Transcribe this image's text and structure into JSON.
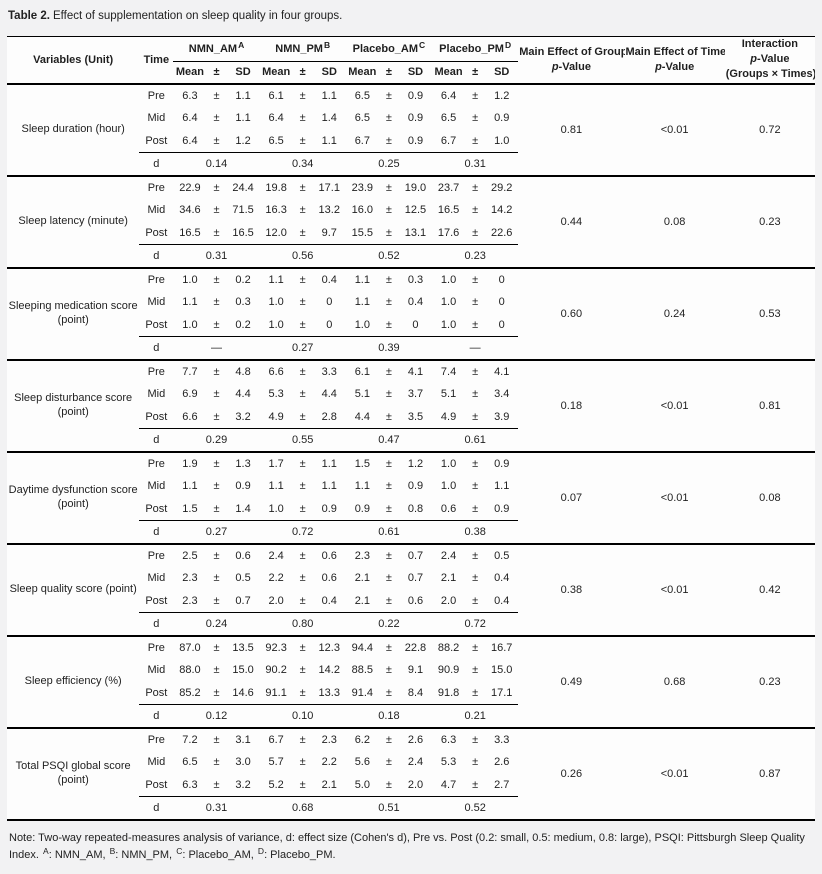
{
  "title": {
    "label": "Table 2.",
    "caption": "Effect of supplementation on sleep quality in four groups."
  },
  "header": {
    "variables": "Variables (Unit)",
    "time": "Time",
    "groups": [
      {
        "name": "NMN_AM",
        "sup": "A"
      },
      {
        "name": "NMN_PM",
        "sup": "B"
      },
      {
        "name": "Placebo_AM",
        "sup": "C"
      },
      {
        "name": "Placebo_PM",
        "sup": "D"
      }
    ],
    "stat_cols": [
      "Mean",
      "±",
      "SD"
    ],
    "p_value_italic": "p",
    "p_value_rest": "-Value",
    "p_cols": [
      {
        "line1": "Main Effect of Group"
      },
      {
        "line1": "Main Effect of Time"
      },
      {
        "line1": "Interaction",
        "line3": "(Groups × Times)"
      }
    ]
  },
  "plus_minus": "±",
  "d_label": "d",
  "rows": [
    {
      "variable": "Sleep duration (hour)",
      "times": [
        {
          "label": "Pre",
          "cells": [
            [
              "6.3",
              "1.1"
            ],
            [
              "6.1",
              "1.1"
            ],
            [
              "6.5",
              "0.9"
            ],
            [
              "6.4",
              "1.2"
            ]
          ]
        },
        {
          "label": "Mid",
          "cells": [
            [
              "6.4",
              "1.1"
            ],
            [
              "6.4",
              "1.4"
            ],
            [
              "6.5",
              "0.9"
            ],
            [
              "6.5",
              "0.9"
            ]
          ]
        },
        {
          "label": "Post",
          "cells": [
            [
              "6.4",
              "1.2"
            ],
            [
              "6.5",
              "1.1"
            ],
            [
              "6.7",
              "0.9"
            ],
            [
              "6.7",
              "1.0"
            ]
          ]
        }
      ],
      "d": [
        "0.14",
        "0.34",
        "0.25",
        "0.31"
      ],
      "p_group": "0.81",
      "p_time": "<0.01",
      "p_interaction": "0.72"
    },
    {
      "variable": "Sleep latency (minute)",
      "times": [
        {
          "label": "Pre",
          "cells": [
            [
              "22.9",
              "24.4"
            ],
            [
              "19.8",
              "17.1"
            ],
            [
              "23.9",
              "19.0"
            ],
            [
              "23.7",
              "29.2"
            ]
          ]
        },
        {
          "label": "Mid",
          "cells": [
            [
              "34.6",
              "71.5"
            ],
            [
              "16.3",
              "13.2"
            ],
            [
              "16.0",
              "12.5"
            ],
            [
              "16.5",
              "14.2"
            ]
          ]
        },
        {
          "label": "Post",
          "cells": [
            [
              "16.5",
              "16.5"
            ],
            [
              "12.0",
              "9.7"
            ],
            [
              "15.5",
              "13.1"
            ],
            [
              "17.6",
              "22.6"
            ]
          ]
        }
      ],
      "d": [
        "0.31",
        "0.56",
        "0.52",
        "0.23"
      ],
      "p_group": "0.44",
      "p_time": "0.08",
      "p_interaction": "0.23"
    },
    {
      "variable": "Sleeping medication score (point)",
      "times": [
        {
          "label": "Pre",
          "cells": [
            [
              "1.0",
              "0.2"
            ],
            [
              "1.1",
              "0.4"
            ],
            [
              "1.1",
              "0.3"
            ],
            [
              "1.0",
              "0"
            ]
          ]
        },
        {
          "label": "Mid",
          "cells": [
            [
              "1.1",
              "0.3"
            ],
            [
              "1.0",
              "0"
            ],
            [
              "1.1",
              "0.4"
            ],
            [
              "1.0",
              "0"
            ]
          ]
        },
        {
          "label": "Post",
          "cells": [
            [
              "1.0",
              "0.2"
            ],
            [
              "1.0",
              "0"
            ],
            [
              "1.0",
              "0"
            ],
            [
              "1.0",
              "0"
            ]
          ]
        }
      ],
      "d": [
        "—",
        "0.27",
        "0.39",
        "—"
      ],
      "p_group": "0.60",
      "p_time": "0.24",
      "p_interaction": "0.53"
    },
    {
      "variable": "Sleep disturbance score (point)",
      "times": [
        {
          "label": "Pre",
          "cells": [
            [
              "7.7",
              "4.8"
            ],
            [
              "6.6",
              "3.3"
            ],
            [
              "6.1",
              "4.1"
            ],
            [
              "7.4",
              "4.1"
            ]
          ]
        },
        {
          "label": "Mid",
          "cells": [
            [
              "6.9",
              "4.4"
            ],
            [
              "5.3",
              "4.4"
            ],
            [
              "5.1",
              "3.7"
            ],
            [
              "5.1",
              "3.4"
            ]
          ]
        },
        {
          "label": "Post",
          "cells": [
            [
              "6.6",
              "3.2"
            ],
            [
              "4.9",
              "2.8"
            ],
            [
              "4.4",
              "3.5"
            ],
            [
              "4.9",
              "3.9"
            ]
          ]
        }
      ],
      "d": [
        "0.29",
        "0.55",
        "0.47",
        "0.61"
      ],
      "p_group": "0.18",
      "p_time": "<0.01",
      "p_interaction": "0.81"
    },
    {
      "variable": "Daytime dysfunction score (point)",
      "times": [
        {
          "label": "Pre",
          "cells": [
            [
              "1.9",
              "1.3"
            ],
            [
              "1.7",
              "1.1"
            ],
            [
              "1.5",
              "1.2"
            ],
            [
              "1.0",
              "0.9"
            ]
          ]
        },
        {
          "label": "Mid",
          "cells": [
            [
              "1.1",
              "0.9"
            ],
            [
              "1.1",
              "1.1"
            ],
            [
              "1.1",
              "0.9"
            ],
            [
              "1.0",
              "1.1"
            ]
          ]
        },
        {
          "label": "Post",
          "cells": [
            [
              "1.5",
              "1.4"
            ],
            [
              "1.0",
              "0.9"
            ],
            [
              "0.9",
              "0.8"
            ],
            [
              "0.6",
              "0.9"
            ]
          ]
        }
      ],
      "d": [
        "0.27",
        "0.72",
        "0.61",
        "0.38"
      ],
      "p_group": "0.07",
      "p_time": "<0.01",
      "p_interaction": "0.08"
    },
    {
      "variable": "Sleep quality score (point)",
      "times": [
        {
          "label": "Pre",
          "cells": [
            [
              "2.5",
              "0.6"
            ],
            [
              "2.4",
              "0.6"
            ],
            [
              "2.3",
              "0.7"
            ],
            [
              "2.4",
              "0.5"
            ]
          ]
        },
        {
          "label": "Mid",
          "cells": [
            [
              "2.3",
              "0.5"
            ],
            [
              "2.2",
              "0.6"
            ],
            [
              "2.1",
              "0.7"
            ],
            [
              "2.1",
              "0.4"
            ]
          ]
        },
        {
          "label": "Post",
          "cells": [
            [
              "2.3",
              "0.7"
            ],
            [
              "2.0",
              "0.4"
            ],
            [
              "2.1",
              "0.6"
            ],
            [
              "2.0",
              "0.4"
            ]
          ]
        }
      ],
      "d": [
        "0.24",
        "0.80",
        "0.22",
        "0.72"
      ],
      "p_group": "0.38",
      "p_time": "<0.01",
      "p_interaction": "0.42"
    },
    {
      "variable": "Sleep efficiency (%)",
      "times": [
        {
          "label": "Pre",
          "cells": [
            [
              "87.0",
              "13.5"
            ],
            [
              "92.3",
              "12.3"
            ],
            [
              "94.4",
              "22.8"
            ],
            [
              "88.2",
              "16.7"
            ]
          ]
        },
        {
          "label": "Mid",
          "cells": [
            [
              "88.0",
              "15.0"
            ],
            [
              "90.2",
              "14.2"
            ],
            [
              "88.5",
              "9.1"
            ],
            [
              "90.9",
              "15.0"
            ]
          ]
        },
        {
          "label": "Post",
          "cells": [
            [
              "85.2",
              "14.6"
            ],
            [
              "91.1",
              "13.3"
            ],
            [
              "91.4",
              "8.4"
            ],
            [
              "91.8",
              "17.1"
            ]
          ]
        }
      ],
      "d": [
        "0.12",
        "0.10",
        "0.18",
        "0.21"
      ],
      "p_group": "0.49",
      "p_time": "0.68",
      "p_interaction": "0.23"
    },
    {
      "variable": "Total PSQI global score (point)",
      "times": [
        {
          "label": "Pre",
          "cells": [
            [
              "7.2",
              "3.1"
            ],
            [
              "6.7",
              "2.3"
            ],
            [
              "6.2",
              "2.6"
            ],
            [
              "6.3",
              "3.3"
            ]
          ]
        },
        {
          "label": "Mid",
          "cells": [
            [
              "6.5",
              "3.0"
            ],
            [
              "5.7",
              "2.2"
            ],
            [
              "5.6",
              "2.4"
            ],
            [
              "5.3",
              "2.6"
            ]
          ]
        },
        {
          "label": "Post",
          "cells": [
            [
              "6.3",
              "3.2"
            ],
            [
              "5.2",
              "2.1"
            ],
            [
              "5.0",
              "2.0"
            ],
            [
              "4.7",
              "2.7"
            ]
          ]
        }
      ],
      "d": [
        "0.31",
        "0.68",
        "0.51",
        "0.52"
      ],
      "p_group": "0.26",
      "p_time": "<0.01",
      "p_interaction": "0.87"
    }
  ],
  "note": {
    "segments": [
      {
        "t": "Note: Two-way repeated-measures analysis of variance, d: effect size (Cohen's d), Pre vs. Post (0.2: small, 0.5: medium, 0.8: large), PSQI: Pittsburgh Sleep Quality Index. "
      },
      {
        "sup": "A"
      },
      {
        "t": ": NMN_AM, "
      },
      {
        "sup": "B"
      },
      {
        "t": ": NMN_PM, "
      },
      {
        "sup": "C"
      },
      {
        "t": ": Placebo_AM, "
      },
      {
        "sup": "D"
      },
      {
        "t": ": Placebo_PM."
      }
    ]
  }
}
